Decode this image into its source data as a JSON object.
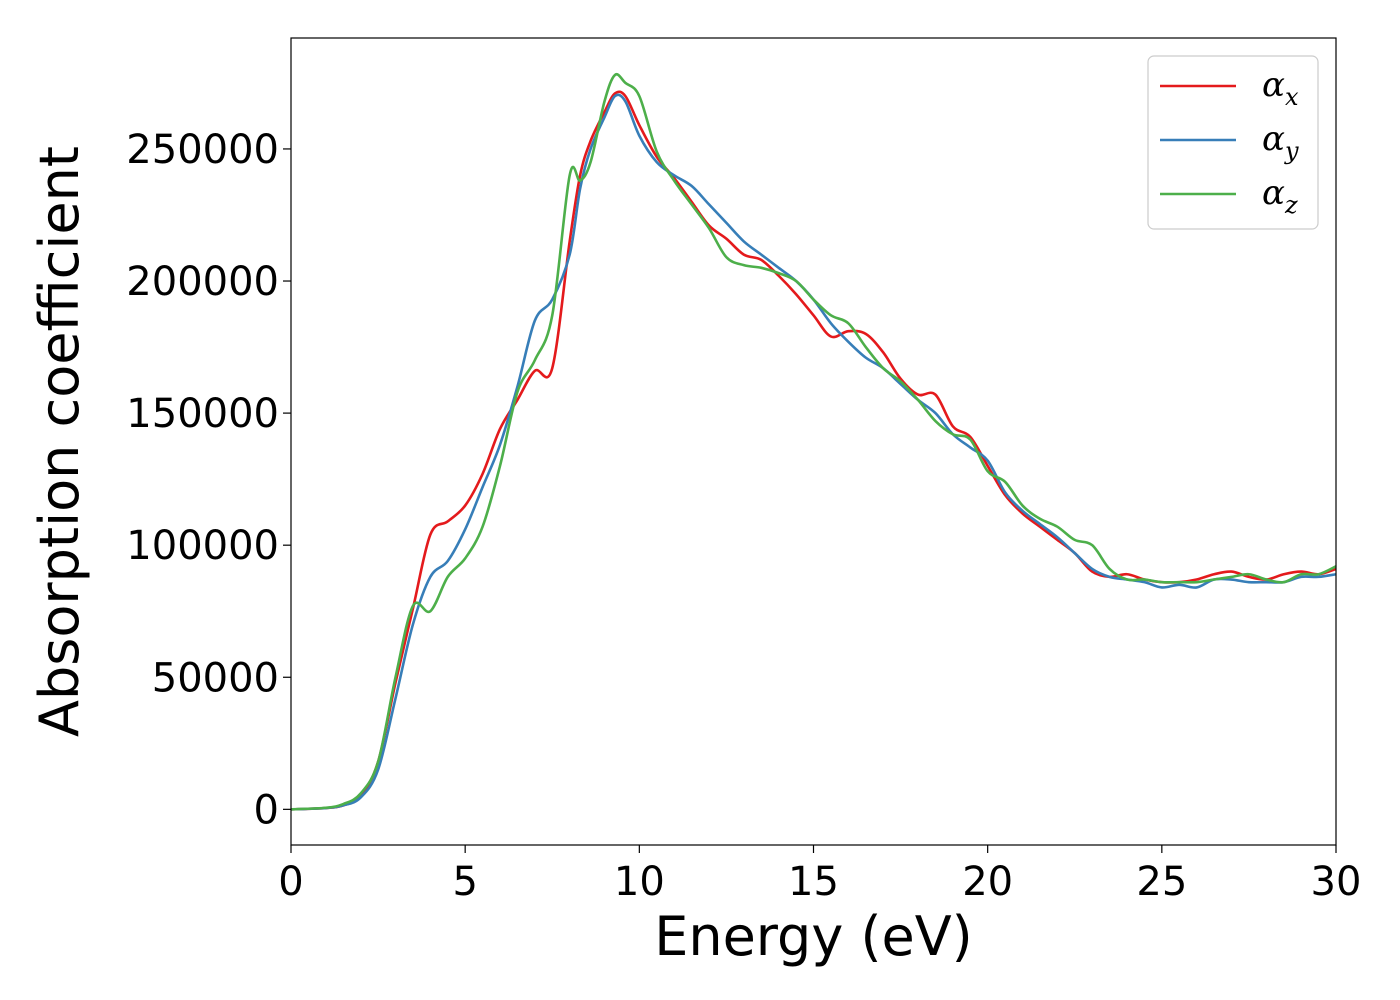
{
  "chart_data": {
    "type": "line",
    "xlabel": "Energy (eV)",
    "ylabel": "Absorption coefficient",
    "xlim": [
      0,
      30
    ],
    "ylim": [
      -13500,
      292000
    ],
    "xticks": [
      0,
      5,
      10,
      15,
      20,
      25,
      30
    ],
    "yticks": [
      0,
      50000,
      100000,
      150000,
      200000,
      250000
    ],
    "grid": false,
    "legend_position": "top-right",
    "series": [
      {
        "name": "α",
        "subscript": "x",
        "color": "#e41a1c",
        "x": [
          0,
          1,
          1.5,
          2,
          2.5,
          3,
          3.5,
          4,
          4.5,
          5,
          5.5,
          6,
          6.5,
          7,
          7.5,
          8,
          8.3,
          8.6,
          9,
          9.3,
          9.6,
          10,
          10.5,
          11,
          11.5,
          12,
          12.5,
          13,
          13.5,
          14,
          14.5,
          15,
          15.5,
          16,
          16.5,
          17,
          17.5,
          18,
          18.5,
          19,
          19.5,
          20,
          20.5,
          21,
          21.5,
          22,
          22.5,
          23,
          23.5,
          24,
          24.5,
          25,
          25.5,
          26,
          26.5,
          27,
          27.5,
          28,
          28.5,
          29,
          29.5,
          30
        ],
        "values": [
          0,
          500,
          1500,
          5000,
          18000,
          48000,
          76000,
          104000,
          109000,
          115000,
          127000,
          144000,
          155000,
          166000,
          167000,
          215000,
          240000,
          253000,
          264000,
          271000,
          270000,
          259000,
          247000,
          239000,
          230000,
          221000,
          216000,
          210000,
          208000,
          202000,
          195000,
          187000,
          179000,
          181000,
          180000,
          173000,
          163000,
          157000,
          157000,
          145000,
          141000,
          130000,
          119000,
          112000,
          107000,
          102000,
          97000,
          90000,
          88000,
          89000,
          87000,
          86000,
          86000,
          87000,
          89000,
          90000,
          88000,
          87000,
          89000,
          90000,
          89000,
          91000
        ]
      },
      {
        "name": "α",
        "subscript": "y",
        "color": "#377eb8",
        "x": [
          0,
          1,
          1.5,
          2,
          2.5,
          3,
          3.5,
          4,
          4.5,
          5,
          5.5,
          6,
          6.5,
          7,
          7.5,
          8,
          8.3,
          8.6,
          9,
          9.3,
          9.6,
          10,
          10.5,
          11,
          11.5,
          12,
          12.5,
          13,
          13.5,
          14,
          14.5,
          15,
          15.5,
          16,
          16.5,
          17,
          17.5,
          18,
          18.5,
          19,
          19.5,
          20,
          20.5,
          21,
          21.5,
          22,
          22.5,
          23,
          23.5,
          24,
          24.5,
          25,
          25.5,
          26,
          26.5,
          27,
          27.5,
          28,
          28.5,
          29,
          29.5,
          30
        ],
        "values": [
          0,
          500,
          1500,
          4500,
          15000,
          42000,
          70000,
          88000,
          94000,
          106000,
          122000,
          138000,
          160000,
          185000,
          193000,
          210000,
          235000,
          250000,
          262000,
          270000,
          268000,
          255000,
          245000,
          240000,
          236000,
          229000,
          222000,
          215000,
          210000,
          205000,
          200000,
          193000,
          184000,
          177000,
          171000,
          167000,
          161000,
          155000,
          150000,
          142000,
          137000,
          132000,
          120000,
          113000,
          108000,
          103000,
          97000,
          91000,
          88000,
          87000,
          86000,
          84000,
          85000,
          84000,
          87000,
          87000,
          86000,
          86000,
          86000,
          88000,
          88000,
          89000
        ]
      },
      {
        "name": "α",
        "subscript": "z",
        "color": "#4daf4a",
        "x": [
          0,
          1,
          1.5,
          2,
          2.5,
          3,
          3.5,
          4,
          4.5,
          5,
          5.5,
          6,
          6.5,
          7,
          7.5,
          8,
          8.3,
          8.6,
          9,
          9.3,
          9.6,
          10,
          10.5,
          11,
          11.5,
          12,
          12.5,
          13,
          13.5,
          14,
          14.5,
          15,
          15.5,
          16,
          16.5,
          17,
          17.5,
          18,
          18.5,
          19,
          19.5,
          20,
          20.5,
          21,
          21.5,
          22,
          22.5,
          23,
          23.5,
          24,
          24.5,
          25,
          25.5,
          26,
          26.5,
          27,
          27.5,
          28,
          28.5,
          29,
          29.5,
          30
        ],
        "values": [
          0,
          600,
          2000,
          6000,
          18000,
          50000,
          77000,
          75000,
          88000,
          95000,
          107000,
          130000,
          158000,
          170000,
          187000,
          240000,
          238000,
          245000,
          268000,
          278000,
          275000,
          270000,
          249000,
          238000,
          229000,
          220000,
          209000,
          206000,
          205000,
          203000,
          200000,
          193000,
          187000,
          184000,
          175000,
          167000,
          162000,
          155000,
          147000,
          142000,
          140000,
          128000,
          124000,
          115000,
          110000,
          107000,
          102000,
          100000,
          91000,
          87000,
          87000,
          86000,
          86000,
          86000,
          87000,
          88000,
          89000,
          87000,
          86000,
          89000,
          89000,
          92000
        ]
      }
    ]
  }
}
